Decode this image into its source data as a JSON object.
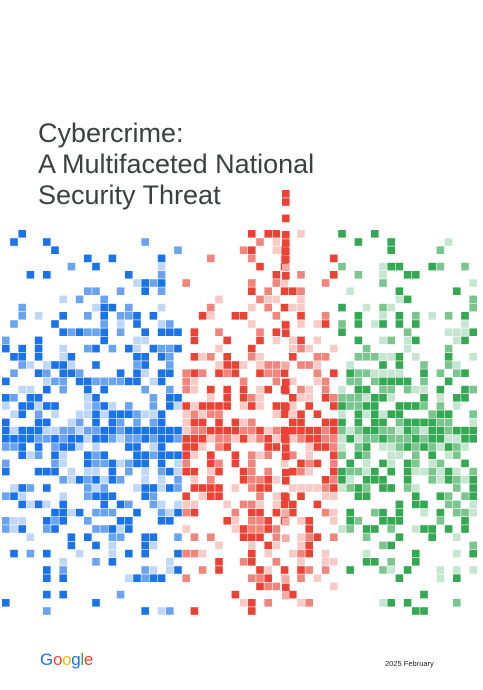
{
  "cover": {
    "title_lines": [
      "Cybercrime:",
      "A Multifaceted National",
      "Security Threat"
    ],
    "brand": "Google",
    "date": "2025 February"
  },
  "colors": {
    "blue": "#1a73e8",
    "red": "#ea4335",
    "green": "#34a853",
    "yellow": "#fbbc04",
    "title_text": "#3c4043"
  },
  "graphic": {
    "icon": "pixel-data-pattern"
  }
}
